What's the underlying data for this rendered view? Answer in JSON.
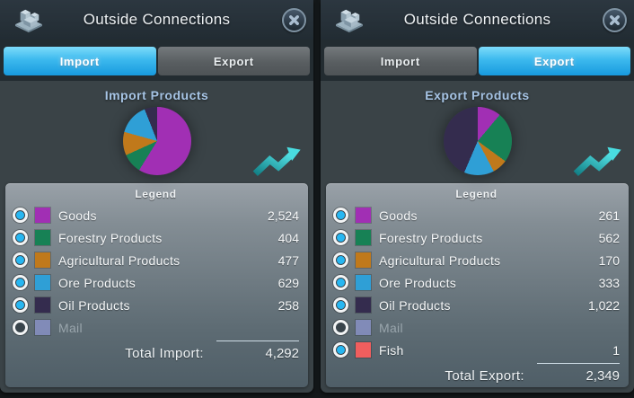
{
  "panels": [
    {
      "title": "Outside Connections",
      "tabs": [
        "Import",
        "Export"
      ],
      "active_tab": "Import",
      "heading": "Import Products",
      "legend_title": "Legend",
      "rows": [
        {
          "label": "Goods",
          "value": "2,524",
          "color": "#a12fb4",
          "enabled": true
        },
        {
          "label": "Forestry Products",
          "value": "404",
          "color": "#178155",
          "enabled": true
        },
        {
          "label": "Agricultural Products",
          "value": "477",
          "color": "#c0791b",
          "enabled": true
        },
        {
          "label": "Ore Products",
          "value": "629",
          "color": "#2f9fd6",
          "enabled": true
        },
        {
          "label": "Oil Products",
          "value": "258",
          "color": "#342c4e",
          "enabled": true
        },
        {
          "label": "Mail",
          "value": "",
          "color": "#8a93c9",
          "enabled": false
        }
      ],
      "total_label": "Total Import:",
      "total_value": "4,292"
    },
    {
      "title": "Outside Connections",
      "tabs": [
        "Import",
        "Export"
      ],
      "active_tab": "Export",
      "heading": "Export Products",
      "legend_title": "Legend",
      "rows": [
        {
          "label": "Goods",
          "value": "261",
          "color": "#a12fb4",
          "enabled": true
        },
        {
          "label": "Forestry Products",
          "value": "562",
          "color": "#178155",
          "enabled": true
        },
        {
          "label": "Agricultural Products",
          "value": "170",
          "color": "#c0791b",
          "enabled": true
        },
        {
          "label": "Ore Products",
          "value": "333",
          "color": "#2f9fd6",
          "enabled": true
        },
        {
          "label": "Oil Products",
          "value": "1,022",
          "color": "#342c4e",
          "enabled": true
        },
        {
          "label": "Mail",
          "value": "",
          "color": "#8a93c9",
          "enabled": false
        },
        {
          "label": "Fish",
          "value": "1",
          "color": "#f15e5e",
          "enabled": true
        }
      ],
      "total_label": "Total Export:",
      "total_value": "2,349"
    }
  ],
  "colors": {
    "accent_cyan": "#27b7f2",
    "active_tab": "#3cb9ee",
    "heading_blue": "#a7c5e6",
    "trend_teal": "#49dce0"
  },
  "chart_data": [
    {
      "type": "pie",
      "title": "Import Products",
      "labels": [
        "Goods",
        "Forestry Products",
        "Agricultural Products",
        "Ore Products",
        "Oil Products"
      ],
      "values": [
        2524,
        404,
        477,
        629,
        258
      ],
      "colors": [
        "#a12fb4",
        "#178155",
        "#c0791b",
        "#2f9fd6",
        "#342c4e"
      ],
      "total": 4292,
      "legend_position": "below"
    },
    {
      "type": "pie",
      "title": "Export Products",
      "labels": [
        "Goods",
        "Forestry Products",
        "Agricultural Products",
        "Ore Products",
        "Oil Products",
        "Fish"
      ],
      "values": [
        261,
        562,
        170,
        333,
        1022,
        1
      ],
      "colors": [
        "#a12fb4",
        "#178155",
        "#c0791b",
        "#2f9fd6",
        "#342c4e",
        "#f15e5e"
      ],
      "total": 2349,
      "legend_position": "below"
    }
  ]
}
